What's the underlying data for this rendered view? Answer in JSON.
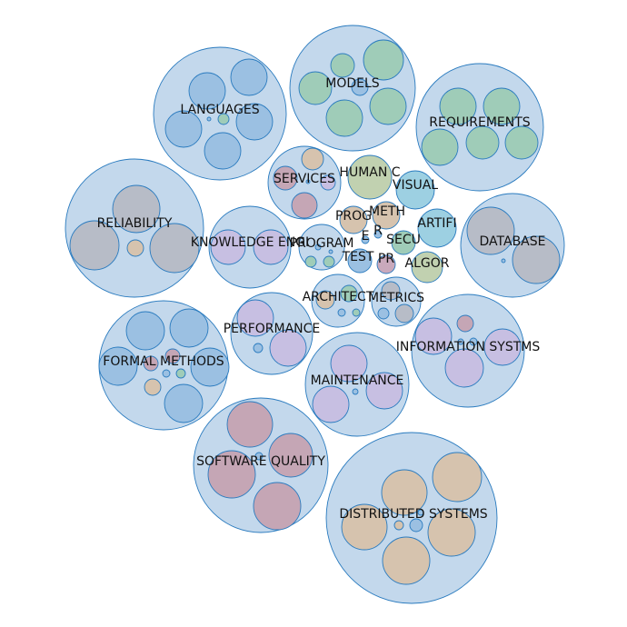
{
  "colors": {
    "outer_fill": "#c3d8ec",
    "stroke": "#2a7bbf",
    "blue": "#9bc0e2",
    "green": "#9fccb8",
    "tan": "#d6c3ae",
    "rose": "#c5a6b5",
    "lilac": "#c7bfe2",
    "gray": "#b7bcc7",
    "olive": "#c1d1b0",
    "cyan": "#9dd0e2",
    "mauve": "#c9a9bc"
  },
  "bubbles": [
    {
      "id": "distributed-systems",
      "label": "DISTRIBUTED SYSTEMS",
      "children": [
        "tan",
        "tan",
        "tan",
        "tan",
        "tan",
        "tan",
        "blue",
        "blue"
      ]
    },
    {
      "id": "software-quality",
      "label": "SOFTWARE QUALITY",
      "children": [
        "rose",
        "rose",
        "rose",
        "rose",
        "blue"
      ]
    },
    {
      "id": "formal-methods",
      "label": "FORMAL METHODS",
      "children": [
        "blue",
        "blue",
        "blue",
        "blue",
        "blue",
        "tan",
        "rose",
        "rose",
        "blue",
        "green"
      ]
    },
    {
      "id": "maintenance",
      "label": "MAINTENANCE",
      "children": [
        "lilac",
        "lilac",
        "lilac",
        "blue"
      ]
    },
    {
      "id": "information-systems",
      "label": "INFORMATION SYSTMS",
      "children": [
        "lilac",
        "lilac",
        "lilac",
        "rose",
        "blue",
        "blue"
      ]
    },
    {
      "id": "performance",
      "label": "PERFORMANCE",
      "children": [
        "lilac",
        "lilac",
        "blue"
      ]
    },
    {
      "id": "reliability",
      "label": "RELIABILITY",
      "children": [
        "gray",
        "gray",
        "gray",
        "tan"
      ]
    },
    {
      "id": "knowledge-engineering",
      "label": "KNOWLEDGE ENGI",
      "children": [
        "lilac",
        "lilac"
      ]
    },
    {
      "id": "languages",
      "label": "LANGUAGES",
      "children": [
        "blue",
        "blue",
        "blue",
        "blue",
        "blue",
        "green",
        "blue"
      ]
    },
    {
      "id": "models",
      "label": "MODELS",
      "children": [
        "green",
        "green",
        "green",
        "green",
        "green",
        "blue"
      ]
    },
    {
      "id": "requirements",
      "label": "REQUIREMENTS",
      "children": [
        "green",
        "green",
        "green",
        "green",
        "green"
      ]
    },
    {
      "id": "database",
      "label": "DATABASE",
      "children": [
        "gray",
        "gray",
        "blue"
      ]
    },
    {
      "id": "services",
      "label": "SERVICES",
      "children": [
        "tan",
        "rose",
        "rose",
        "lilac",
        "blue"
      ]
    },
    {
      "id": "program",
      "label": "PROGRAM",
      "children": [
        "green",
        "green",
        "blue",
        "blue"
      ]
    },
    {
      "id": "architecture",
      "label": "ARCHITECT",
      "children": [
        "tan",
        "green",
        "blue",
        "green"
      ]
    },
    {
      "id": "metrics",
      "label": "METRICS",
      "children": [
        "gray",
        "gray",
        "blue"
      ]
    },
    {
      "id": "human-computer",
      "label": "HUMAN C",
      "children": []
    },
    {
      "id": "visual",
      "label": "VISUAL",
      "children": []
    },
    {
      "id": "methods",
      "label": "METH",
      "children": []
    },
    {
      "id": "process",
      "label": "PROG",
      "children": []
    },
    {
      "id": "artificial",
      "label": "ARTIFI",
      "children": []
    },
    {
      "id": "security",
      "label": "SECU",
      "children": []
    },
    {
      "id": "algorithms",
      "label": "ALGOR",
      "children": []
    },
    {
      "id": "testing",
      "label": "TEST",
      "children": []
    },
    {
      "id": "pr",
      "label": "PR",
      "children": []
    },
    {
      "id": "e-small",
      "label": "E",
      "children": []
    },
    {
      "id": "r-small",
      "label": "R",
      "children": []
    }
  ]
}
